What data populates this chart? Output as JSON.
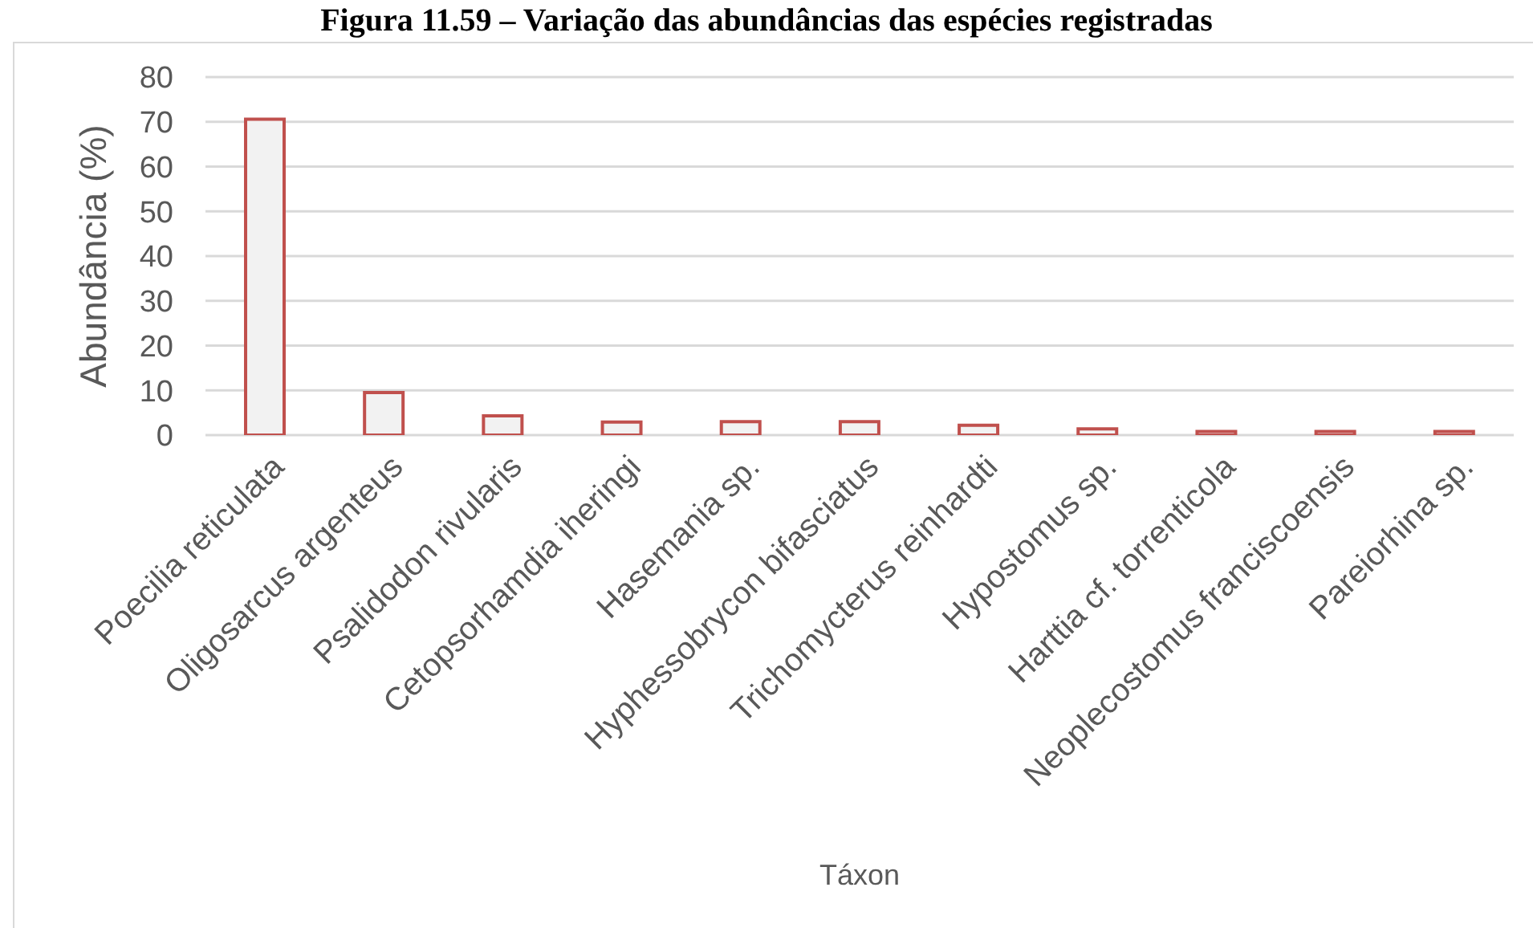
{
  "chart_data": {
    "type": "bar",
    "title": "Figura 11.59 – Variação das abundâncias das espécies registradas",
    "xlabel": "Táxon",
    "ylabel": "Abundância (%)",
    "categories": [
      "Poecilia reticulata",
      "Oligosarcus argenteus",
      "Psalidodon rivularis",
      "Cetopsorhamdia iheringi",
      "Hasemania sp.",
      "Hyphessobrycon bifasciatus",
      "Trichomycterus reinhardti",
      "Hypostomus sp.",
      "Harttia cf. torrenticola",
      "Neoplecostomus franciscoensis",
      "Pareiorhina sp."
    ],
    "values": [
      70.6,
      9.5,
      4.3,
      2.9,
      3.0,
      3.0,
      2.2,
      1.4,
      0.8,
      0.8,
      0.8
    ],
    "color": "#f2f2f2",
    "ylim": [
      0,
      80
    ],
    "yticks": [
      0,
      10,
      20,
      30,
      40,
      50,
      60,
      70,
      80
    ],
    "grid": "y"
  }
}
